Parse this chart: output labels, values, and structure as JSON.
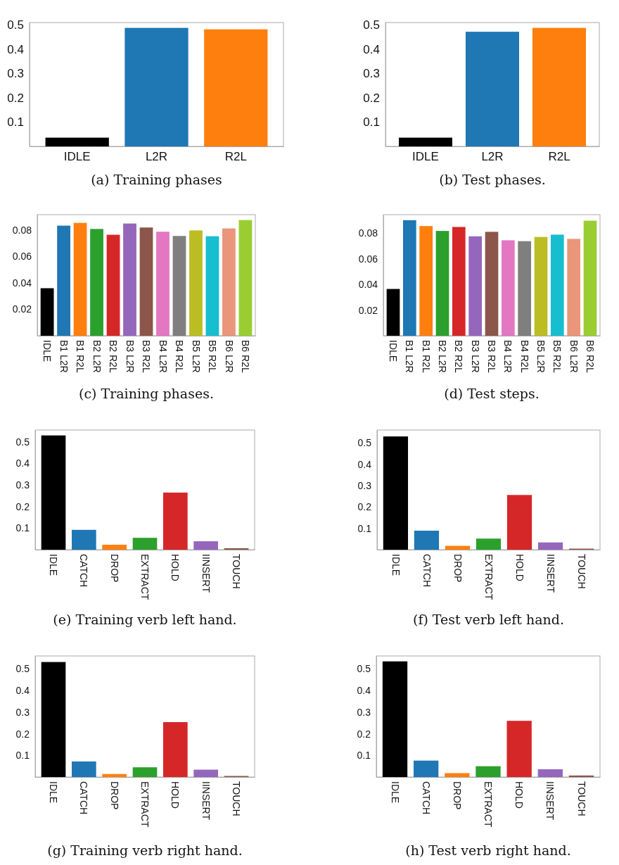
{
  "chart_data": [
    {
      "type": "bar",
      "title": "(a) Training phases",
      "categories": [
        "IDLE",
        "L2R",
        "R2L"
      ],
      "values": [
        0.036,
        0.488,
        0.482
      ],
      "colors": [
        "#000000",
        "#1f77b4",
        "#ff7f0e"
      ],
      "ylim": [
        0,
        0.51
      ],
      "yticks": [
        0.1,
        0.2,
        0.3,
        0.4,
        0.5
      ]
    },
    {
      "type": "bar",
      "title": "(b) Test phases.",
      "categories": [
        "IDLE",
        "L2R",
        "R2L"
      ],
      "values": [
        0.036,
        0.472,
        0.488
      ],
      "colors": [
        "#000000",
        "#1f77b4",
        "#ff7f0e"
      ],
      "ylim": [
        0,
        0.51
      ],
      "yticks": [
        0.1,
        0.2,
        0.3,
        0.4,
        0.5
      ]
    },
    {
      "type": "bar",
      "title": "(c) Training phases.",
      "categories": [
        "IDLE",
        "B1 L2R",
        "B1 R2L",
        "B2 L2R",
        "B2 R2L",
        "B3 L2R",
        "B3 R2L",
        "B4 L2R",
        "B4 R2L",
        "B5 L2R",
        "B5 R2L",
        "B6 L2R",
        "B6 R2L"
      ],
      "values": [
        0.0359,
        0.0832,
        0.0853,
        0.0807,
        0.0763,
        0.0848,
        0.0818,
        0.0786,
        0.0754,
        0.0796,
        0.0752,
        0.0811,
        0.0874
      ],
      "colors": [
        "#000000",
        "#1f77b4",
        "#ff7f0e",
        "#2ca02c",
        "#d62728",
        "#9467bd",
        "#8c564b",
        "#e377c2",
        "#7f7f7f",
        "#bcbd22",
        "#17becf",
        "#e9967a",
        "#9acd32"
      ],
      "ylim": [
        0,
        0.0915
      ],
      "yticks": [
        0.02,
        0.04,
        0.06,
        0.08
      ]
    },
    {
      "type": "bar",
      "title": "(d) Test steps.",
      "categories": [
        "IDLE",
        "B1 L2R",
        "B1 R2L",
        "B2 L2R",
        "B2 R2L",
        "B3 L2R",
        "B3 R2L",
        "B4 L2R",
        "B4 R2L",
        "B5 L2R",
        "B5 R2L",
        "B6 L2R",
        "B6 R2L"
      ],
      "values": [
        0.0365,
        0.0902,
        0.0856,
        0.0818,
        0.0849,
        0.0776,
        0.0811,
        0.0745,
        0.0738,
        0.0771,
        0.0789,
        0.0756,
        0.0898
      ],
      "colors": [
        "#000000",
        "#1f77b4",
        "#ff7f0e",
        "#2ca02c",
        "#d62728",
        "#9467bd",
        "#8c564b",
        "#e377c2",
        "#7f7f7f",
        "#bcbd22",
        "#17becf",
        "#e9967a",
        "#9acd32"
      ],
      "ylim": [
        0,
        0.0945
      ],
      "yticks": [
        0.02,
        0.04,
        0.06,
        0.08
      ]
    },
    {
      "type": "bar",
      "title": "(e) Training verb left hand.",
      "categories": [
        "IDLE",
        "CATCH",
        "DROP",
        "EXTRACT",
        "HOLD",
        "IINSERT",
        "TOUCH"
      ],
      "values": [
        0.53,
        0.092,
        0.023,
        0.055,
        0.265,
        0.039,
        0.007
      ],
      "colors": [
        "#000000",
        "#1f77b4",
        "#ff7f0e",
        "#2ca02c",
        "#d62728",
        "#9467bd",
        "#8c564b"
      ],
      "ylim": [
        0,
        0.555
      ],
      "yticks": [
        0.1,
        0.2,
        0.3,
        0.4,
        0.5
      ]
    },
    {
      "type": "bar",
      "title": "(f) Test verb left hand.",
      "categories": [
        "IDLE",
        "CATCH",
        "DROP",
        "EXTRACT",
        "HOLD",
        "IINSERT",
        "TOUCH"
      ],
      "values": [
        0.53,
        0.089,
        0.018,
        0.052,
        0.256,
        0.034,
        0.005
      ],
      "colors": [
        "#000000",
        "#1f77b4",
        "#ff7f0e",
        "#2ca02c",
        "#d62728",
        "#9467bd",
        "#8c564b"
      ],
      "ylim": [
        0,
        0.56
      ],
      "yticks": [
        0.1,
        0.2,
        0.3,
        0.4,
        0.5
      ]
    },
    {
      "type": "bar",
      "title": "(g) Training verb right hand.",
      "categories": [
        "IDLE",
        "CATCH",
        "DROP",
        "EXTRACT",
        "HOLD",
        "IINSERT",
        "TOUCH"
      ],
      "values": [
        0.532,
        0.072,
        0.014,
        0.045,
        0.254,
        0.034,
        0.005
      ],
      "colors": [
        "#000000",
        "#1f77b4",
        "#ff7f0e",
        "#2ca02c",
        "#d62728",
        "#9467bd",
        "#8c564b"
      ],
      "ylim": [
        0,
        0.56
      ],
      "yticks": [
        0.1,
        0.2,
        0.3,
        0.4,
        0.5
      ]
    },
    {
      "type": "bar",
      "title": "(h) Test verb right hand.",
      "categories": [
        "IDLE",
        "CATCH",
        "DROP",
        "EXTRACT",
        "HOLD",
        "IINSERT",
        "TOUCH"
      ],
      "values": [
        0.535,
        0.076,
        0.018,
        0.05,
        0.26,
        0.036,
        0.007
      ],
      "colors": [
        "#000000",
        "#1f77b4",
        "#ff7f0e",
        "#2ca02c",
        "#d62728",
        "#9467bd",
        "#8c564b"
      ],
      "ylim": [
        0,
        0.56
      ],
      "yticks": [
        0.1,
        0.2,
        0.3,
        0.4,
        0.5
      ]
    }
  ]
}
